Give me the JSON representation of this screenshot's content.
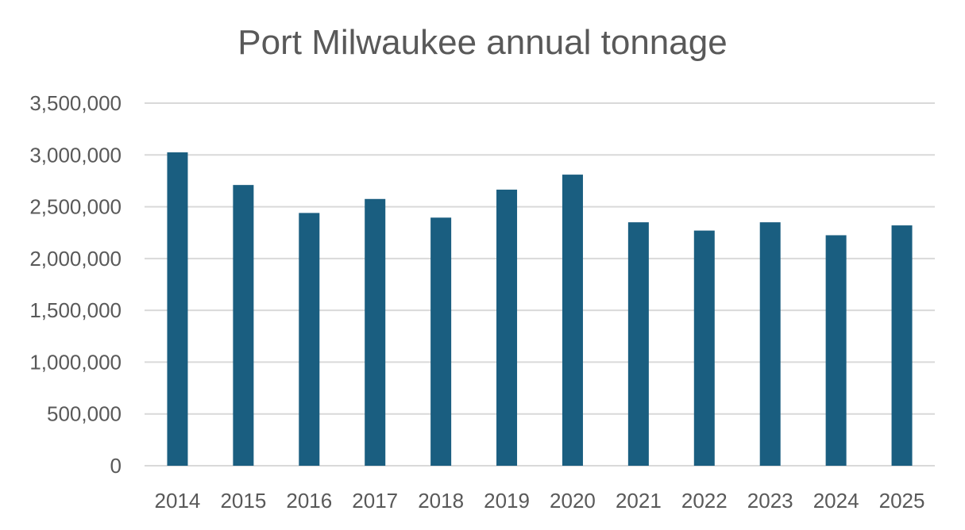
{
  "chart_data": {
    "type": "bar",
    "title": "Port Milwaukee annual tonnage",
    "xlabel": "",
    "ylabel": "",
    "categories": [
      "2014",
      "2015",
      "2016",
      "2017",
      "2018",
      "2019",
      "2020",
      "2021",
      "2022",
      "2023",
      "2024",
      "2025"
    ],
    "values": [
      3025000,
      2710000,
      2440000,
      2575000,
      2395000,
      2665000,
      2810000,
      2350000,
      2270000,
      2350000,
      2225000,
      2320000
    ],
    "ylim": [
      0,
      3500000
    ],
    "yticks": [
      0,
      500000,
      1000000,
      1500000,
      2000000,
      2500000,
      3000000,
      3500000
    ],
    "ytick_labels": [
      "0",
      "500,000",
      "1,000,000",
      "1,500,000",
      "2,000,000",
      "2,500,000",
      "3,000,000",
      "3,500,000"
    ],
    "grid": true,
    "legend": "none",
    "bar_color": "#1a5e80",
    "grid_color": "#d9d9d9",
    "text_color": "#595959"
  }
}
